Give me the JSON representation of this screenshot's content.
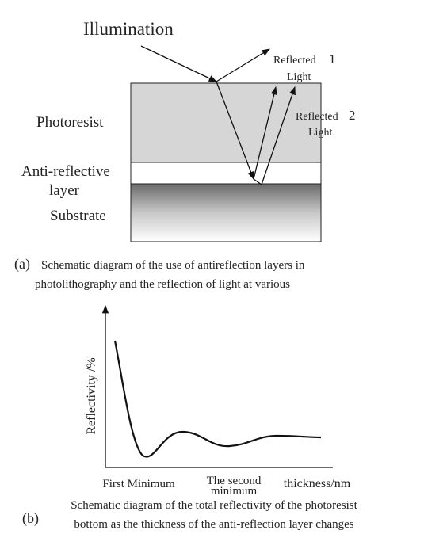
{
  "panel_a": {
    "illumination": "Illumination",
    "reflected_1": {
      "label": "Reflected",
      "number": "1",
      "unit": "Light"
    },
    "reflected_2": {
      "label": "Reflected",
      "number": "2",
      "unit": "Light"
    },
    "layers": {
      "photoresist": "Photoresist",
      "anti_reflective": [
        "Anti-reflective",
        "layer"
      ],
      "substrate": "Substrate"
    },
    "caption": {
      "tag": "(a)",
      "lines": [
        "Schematic diagram of the use of antireflection layers in",
        "photolithography and the reflection of light at various"
      ]
    }
  },
  "panel_b": {
    "y_label": "Reflectivity /%",
    "x_labels": {
      "first_minimum": "First Minimum",
      "second_minimum": [
        "The second",
        "minimum"
      ],
      "axis": "thickness/nm"
    },
    "caption": {
      "tag": "(b)",
      "lines": [
        "Schematic diagram of the total reflectivity of the photoresist",
        "bottom as the thickness of the anti-reflection layer changes"
      ]
    }
  }
}
